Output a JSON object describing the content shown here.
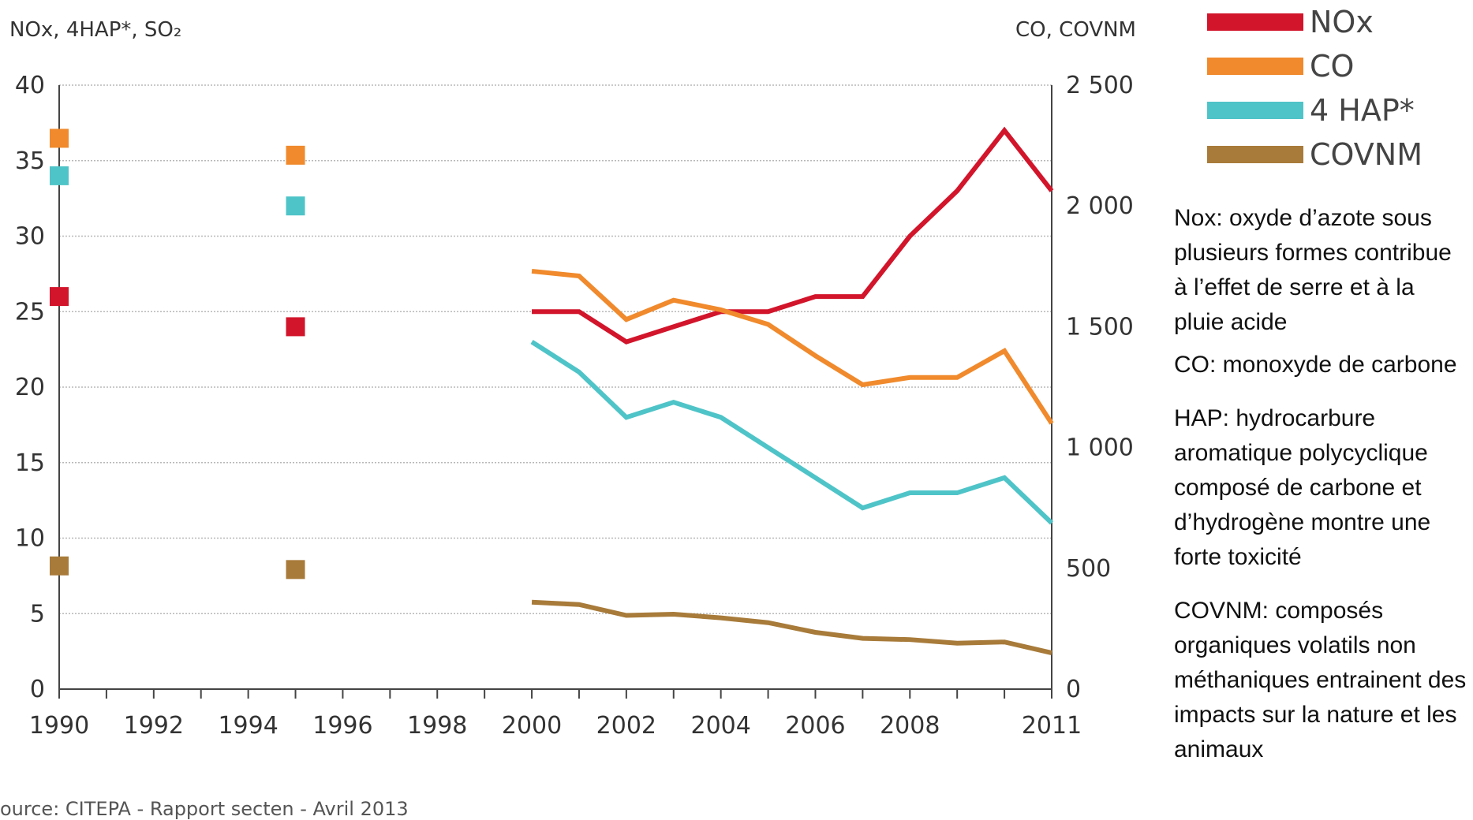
{
  "chart_data": {
    "type": "line",
    "left_axis_label": "NOx, 4HAP*, SO₂",
    "right_axis_label": "CO, COVNM",
    "y_left_ticks": [
      "0",
      "5",
      "10",
      "15",
      "20",
      "25",
      "30",
      "35",
      "40"
    ],
    "y_left_values": [
      0,
      5,
      10,
      15,
      20,
      25,
      30,
      35,
      40
    ],
    "y_right_ticks": [
      "0",
      "500",
      "1 000",
      "1 500",
      "2 000",
      "2 500"
    ],
    "y_right_values": [
      0,
      500,
      1000,
      1500,
      2000,
      2500
    ],
    "x_ticks": [
      "1990",
      "1992",
      "1994",
      "1996",
      "1998",
      "2000",
      "2002",
      "2004",
      "2006",
      "2008",
      "2011"
    ],
    "x_tick_values": [
      1990,
      1992,
      1994,
      1996,
      1998,
      2000,
      2002,
      2004,
      2006,
      2008,
      2011
    ],
    "xlim": [
      1990,
      2011
    ],
    "ylim_left": [
      0,
      40
    ],
    "ylim_right": [
      0,
      2500
    ],
    "grid": true,
    "legend_position": "top-right",
    "series": [
      {
        "name": "NOx",
        "axis": "left",
        "color": "#d2152b",
        "points": [
          [
            1990,
            26
          ],
          [
            1995,
            24
          ]
        ],
        "x": [
          2000,
          2001,
          2002,
          2003,
          2004,
          2005,
          2006,
          2007,
          2008,
          2009,
          2010,
          2011
        ],
        "values": [
          25,
          25,
          23,
          24,
          25,
          25,
          26,
          26,
          30,
          33,
          37,
          33
        ]
      },
      {
        "name": "CO",
        "axis": "right",
        "color": "#f08a2c",
        "points": [
          [
            1990,
            2280
          ],
          [
            1995,
            2210
          ]
        ],
        "x": [
          2000,
          2001,
          2002,
          2003,
          2004,
          2005,
          2006,
          2007,
          2008,
          2009,
          2010,
          2011
        ],
        "values": [
          1730,
          1710,
          1530,
          1610,
          1570,
          1510,
          1380,
          1260,
          1290,
          1290,
          1400,
          1100
        ]
      },
      {
        "name": "4 HAP*",
        "axis": "left",
        "color": "#4fc4c8",
        "points": [
          [
            1990,
            34
          ],
          [
            1995,
            32
          ]
        ],
        "x": [
          2000,
          2001,
          2002,
          2003,
          2004,
          2005,
          2006,
          2007,
          2008,
          2009,
          2010,
          2011
        ],
        "values": [
          23,
          21,
          18,
          19,
          18,
          16,
          14,
          12,
          13,
          13,
          14,
          11
        ]
      },
      {
        "name": "COVNM",
        "axis": "right",
        "color": "#a87b3a",
        "points": [
          [
            1990,
            510
          ],
          [
            1995,
            495
          ]
        ],
        "x": [
          2000,
          2001,
          2002,
          2003,
          2004,
          2005,
          2006,
          2007,
          2008,
          2009,
          2010,
          2011
        ],
        "values": [
          360,
          350,
          305,
          310,
          295,
          275,
          235,
          210,
          205,
          190,
          195,
          150
        ]
      }
    ],
    "source": "ource: CITEPA - Rapport secten - Avril 2013"
  },
  "definitions": [
    "Nox: oxyde d’azote sous plusieurs formes contribue à l’effet de serre et à la pluie acide",
    "CO: monoxyde de carbone",
    "HAP: hydrocarbure aromatique polycyclique composé de carbone et d’hydrogène  montre une forte toxicité",
    "COVNM: composés organiques volatils non méthaniques  entrainent des impacts sur la nature et les animaux"
  ]
}
